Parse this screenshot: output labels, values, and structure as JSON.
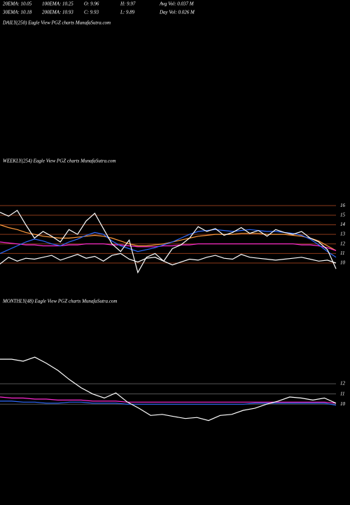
{
  "header": {
    "rows": [
      [
        "20EMA: 10.05",
        "100EMA: 10.25",
        "O: 9.96",
        "H: 9.97",
        "Avg Vol: 0.037 M"
      ],
      [
        "30EMA: 10.18",
        "200EMA: 10.93",
        "C: 9.93",
        "L: 9.89",
        "Day Vol: 0.026 M"
      ]
    ]
  },
  "chart_data": [
    {
      "type": "line",
      "title": "DAILY(250) Eagle  View  PGZ charts MunafaSutra.com"
    },
    {
      "type": "line",
      "title": "WEEKLY(254) Eagle  View  PGZ charts MunafaSutra.com",
      "ylim": [
        6.7,
        17.7
      ],
      "yticks": [
        16,
        15,
        14,
        13,
        12,
        11,
        10
      ],
      "grid": true,
      "grid_color": "#8b3a1a",
      "series": [
        {
          "color": "#ff9a3c",
          "values": [
            14.0,
            13.7,
            13.5,
            13.2,
            13.0,
            12.8,
            12.7,
            12.6,
            12.6,
            12.7,
            12.8,
            12.9,
            12.8,
            12.6,
            12.3,
            12.0,
            11.8,
            11.8,
            11.9,
            12.0,
            12.2,
            12.4,
            12.6,
            12.8,
            12.9,
            13.0,
            13.0,
            13.0,
            13.1,
            13.1,
            13.1,
            13.0,
            13.0,
            13.0,
            12.9,
            12.8,
            12.6,
            12.3,
            11.8,
            11.3
          ]
        },
        {
          "color": "#ff2ad4",
          "values": [
            12.2,
            12.1,
            12.0,
            11.9,
            11.9,
            11.8,
            11.8,
            11.8,
            11.9,
            11.9,
            12.0,
            12.0,
            12.0,
            11.9,
            11.9,
            11.8,
            11.7,
            11.7,
            11.7,
            11.8,
            11.8,
            11.9,
            11.9,
            12.0,
            12.0,
            12.0,
            12.0,
            12.0,
            12.0,
            12.0,
            12.0,
            12.0,
            12.0,
            12.0,
            12.0,
            11.9,
            11.9,
            11.8,
            11.6,
            11.3
          ]
        },
        {
          "color": "#2f6bff",
          "values": [
            11.0,
            11.4,
            11.8,
            12.2,
            12.5,
            12.3,
            12.0,
            11.8,
            12.2,
            12.5,
            12.9,
            13.2,
            13.0,
            12.3,
            11.8,
            11.5,
            11.2,
            11.4,
            11.6,
            11.9,
            12.2,
            12.6,
            13.0,
            13.3,
            13.4,
            13.5,
            13.4,
            13.3,
            13.4,
            13.5,
            13.4,
            13.3,
            13.3,
            13.2,
            13.1,
            12.9,
            12.5,
            11.9,
            11.2,
            10.6
          ]
        },
        {
          "color": "#ffffff",
          "values": [
            9.9,
            10.6,
            10.2,
            10.5,
            10.4,
            10.6,
            10.8,
            10.3,
            10.6,
            10.9,
            10.5,
            10.7,
            10.2,
            10.8,
            11.0,
            10.4,
            10.1,
            10.5,
            10.6,
            10.2,
            9.8,
            10.1,
            10.4,
            10.3,
            10.6,
            10.8,
            10.5,
            10.4,
            10.9,
            10.6,
            10.5,
            10.4,
            10.3,
            10.4,
            10.5,
            10.6,
            10.4,
            10.2,
            10.3,
            10.0
          ]
        },
        {
          "color": "#ffffff",
          "values": [
            15.3,
            14.9,
            15.5,
            14.0,
            12.6,
            13.3,
            12.8,
            12.2,
            13.5,
            13.0,
            14.4,
            15.2,
            13.6,
            12.0,
            11.2,
            12.4,
            9.0,
            10.6,
            11.0,
            10.2,
            11.5,
            11.9,
            12.6,
            13.8,
            13.3,
            13.6,
            12.9,
            13.2,
            13.7,
            13.1,
            13.4,
            12.8,
            13.5,
            13.2,
            13.0,
            13.3,
            12.6,
            12.2,
            11.4,
            9.4
          ]
        }
      ]
    },
    {
      "type": "line",
      "title": "MONTHLY(48) Eagle  View  PGZ charts MunafaSutra.com",
      "ylim": [
        7.0,
        16.6
      ],
      "yticks": [
        12,
        11,
        10
      ],
      "grid": true,
      "grid_color": "#555555",
      "series": [
        {
          "color": "#ff2ad4",
          "values": [
            10.7,
            10.6,
            10.6,
            10.5,
            10.5,
            10.4,
            10.4,
            10.4,
            10.3,
            10.3,
            10.3,
            10.2,
            10.2,
            10.2,
            10.2,
            10.2,
            10.2,
            10.2,
            10.2,
            10.2,
            10.2,
            10.2,
            10.2,
            10.2,
            10.2,
            10.2,
            10.2,
            10.2,
            10.2,
            10.1
          ]
        },
        {
          "color": "#2f6bff",
          "values": [
            10.3,
            10.3,
            10.2,
            10.2,
            10.1,
            10.1,
            10.2,
            10.2,
            10.1,
            10.1,
            10.1,
            10.0,
            10.0,
            10.0,
            10.0,
            10.0,
            10.0,
            10.0,
            10.0,
            10.0,
            10.0,
            10.0,
            10.1,
            10.1,
            10.1,
            10.1,
            10.1,
            10.1,
            10.1,
            9.9
          ]
        },
        {
          "color": "#ffffff",
          "values": [
            14.4,
            14.4,
            14.2,
            14.6,
            14.0,
            13.3,
            12.4,
            11.6,
            11.0,
            10.6,
            11.1,
            10.2,
            9.6,
            8.9,
            9.0,
            8.8,
            8.6,
            8.7,
            8.4,
            8.9,
            9.0,
            9.4,
            9.6,
            10.0,
            10.3,
            10.7,
            10.6,
            10.4,
            10.6,
            10.1
          ]
        }
      ]
    }
  ]
}
